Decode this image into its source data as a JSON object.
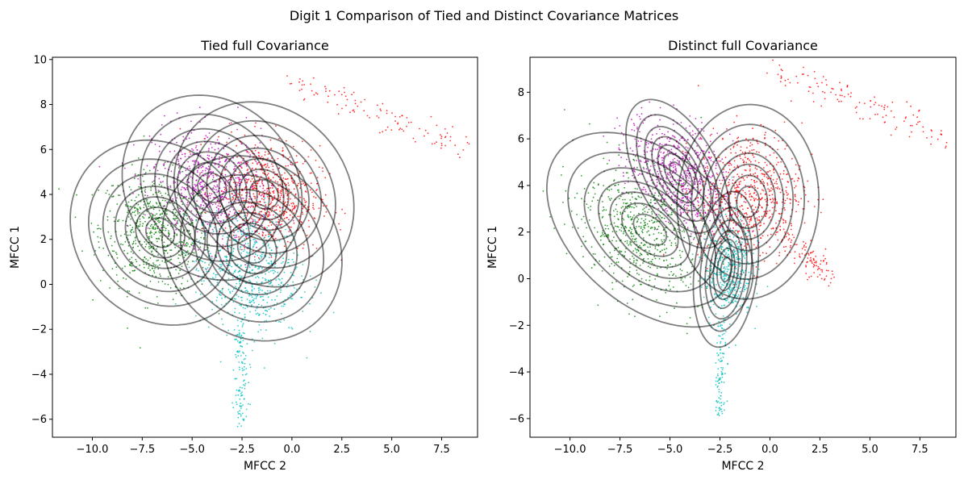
{
  "figure": {
    "suptitle": "Digit 1 Comparison of Tied and Distinct Covariance Matrices"
  },
  "chart_data": [
    {
      "type": "scatter",
      "title": "Tied full Covariance",
      "xlabel": "MFCC 2",
      "ylabel": "MFCC 1",
      "xlim": [
        -12.0,
        9.3
      ],
      "ylim": [
        -6.8,
        10.1
      ],
      "xticks": [
        -10.0,
        -7.5,
        -5.0,
        -2.5,
        0.0,
        2.5,
        5.0,
        7.5
      ],
      "yticks": [
        -6,
        -4,
        -2,
        0,
        2,
        4,
        6,
        8,
        10
      ],
      "xtick_labels": [
        "−10.0",
        "−7.5",
        "−5.0",
        "−2.5",
        "0.0",
        "2.5",
        "5.0",
        "7.5"
      ],
      "ytick_labels": [
        "−6",
        "−4",
        "−2",
        "0",
        "2",
        "4",
        "6",
        "8",
        "10"
      ],
      "clusters": [
        {
          "color": "#008000",
          "mean": [
            -6.8,
            2.3
          ],
          "std": [
            1.4,
            1.3
          ],
          "rho": -0.1,
          "n": 650
        },
        {
          "color": "#bf00bf",
          "mean": [
            -4.0,
            4.3
          ],
          "std": [
            1.5,
            1.3
          ],
          "rho": -0.15,
          "n": 650
        },
        {
          "color": "#ff0000",
          "mean": [
            -1.2,
            4.0
          ],
          "std": [
            1.3,
            1.2
          ],
          "rho": -0.1,
          "n": 650
        },
        {
          "color": "#00bfbf",
          "mean": [
            -2.2,
            0.6
          ],
          "std": [
            1.3,
            1.4
          ],
          "rho": -0.1,
          "n": 600
        }
      ],
      "tail_points": [
        {
          "color": "#ff0000",
          "from": [
            0.2,
            9.0
          ],
          "to": [
            9.0,
            6.0
          ],
          "spread": 0.6,
          "n": 110
        },
        {
          "color": "#00bfbf",
          "from": [
            -2.5,
            -1.5
          ],
          "to": [
            -2.6,
            -6.2
          ],
          "spread": 0.35,
          "n": 120
        }
      ],
      "gaussians": [
        {
          "mean": [
            -6.6,
            2.3
          ],
          "cov": [
            [
              4.2,
              -0.55
            ],
            [
              -0.55,
              3.5
            ]
          ]
        },
        {
          "mean": [
            -4.0,
            4.3
          ],
          "cov": [
            [
              4.2,
              -0.55
            ],
            [
              -0.55,
              3.5
            ]
          ]
        },
        {
          "mean": [
            -1.4,
            4.0
          ],
          "cov": [
            [
              4.2,
              -0.55
            ],
            [
              -0.55,
              3.5
            ]
          ]
        },
        {
          "mean": [
            -2.0,
            1.6
          ],
          "cov": [
            [
              4.2,
              -0.55
            ],
            [
              -0.55,
              3.5
            ]
          ]
        }
      ]
    },
    {
      "type": "scatter",
      "title": "Distinct full Covariance",
      "xlabel": "MFCC 2",
      "ylabel": "MFCC 1",
      "xlim": [
        -12.0,
        9.3
      ],
      "ylim": [
        -6.8,
        9.5
      ],
      "xticks": [
        -10.0,
        -7.5,
        -5.0,
        -2.5,
        0.0,
        2.5,
        5.0,
        7.5
      ],
      "yticks": [
        -6,
        -4,
        -2,
        0,
        2,
        4,
        6,
        8
      ],
      "xtick_labels": [
        "−10.0",
        "−7.5",
        "−5.0",
        "−2.5",
        "0.0",
        "2.5",
        "5.0",
        "7.5"
      ],
      "ytick_labels": [
        "−6",
        "−4",
        "−2",
        "0",
        "2",
        "4",
        "6",
        "8"
      ],
      "clusters": [
        {
          "color": "#008000",
          "mean": [
            -6.5,
            2.0
          ],
          "std": [
            1.6,
            1.4
          ],
          "rho": -0.3,
          "n": 650
        },
        {
          "color": "#bf00bf",
          "mean": [
            -4.5,
            4.5
          ],
          "std": [
            1.3,
            1.2
          ],
          "rho": -0.4,
          "n": 650
        },
        {
          "color": "#ff0000",
          "mean": [
            -1.0,
            3.6
          ],
          "std": [
            1.3,
            1.4
          ],
          "rho": 0.1,
          "n": 650
        },
        {
          "color": "#00bfbf",
          "mean": [
            -2.1,
            0.4
          ],
          "std": [
            0.6,
            1.1
          ],
          "rho": 0.1,
          "n": 450
        }
      ],
      "tail_points": [
        {
          "color": "#ff0000",
          "from": [
            0.3,
            9.0
          ],
          "to": [
            9.0,
            6.0
          ],
          "spread": 0.7,
          "n": 120
        },
        {
          "color": "#ff0000",
          "from": [
            0.5,
            2.0
          ],
          "to": [
            3.0,
            0.0
          ],
          "spread": 0.6,
          "n": 110
        },
        {
          "color": "#00bfbf",
          "from": [
            -2.4,
            -2.0
          ],
          "to": [
            -2.5,
            -6.0
          ],
          "spread": 0.3,
          "n": 100
        }
      ],
      "gaussians": [
        {
          "mean": [
            -6.0,
            2.1
          ],
          "cov": [
            [
              5.5,
              -1.9
            ],
            [
              -1.9,
              3.6
            ]
          ]
        },
        {
          "mean": [
            -4.6,
            4.5
          ],
          "cov": [
            [
              1.4,
              -0.9
            ],
            [
              -0.9,
              2.1
            ]
          ]
        },
        {
          "mean": [
            -1.1,
            3.3
          ],
          "cov": [
            [
              2.6,
              0.1
            ],
            [
              0.1,
              3.6
            ]
          ]
        },
        {
          "mean": [
            -2.2,
            0.4
          ],
          "cov": [
            [
              0.55,
              0.25
            ],
            [
              0.25,
              2.3
            ]
          ]
        }
      ]
    }
  ]
}
